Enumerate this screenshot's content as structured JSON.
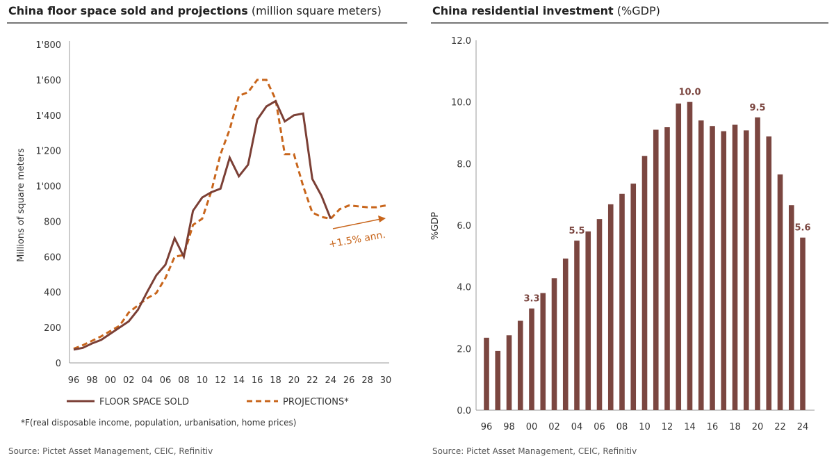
{
  "chart_data": [
    {
      "type": "line",
      "title": "China floor space sold and projections",
      "subtitle": "(million square meters)",
      "ylabel": "Millions  of square meters",
      "ylim": [
        0,
        1800
      ],
      "yticks": [
        "0",
        "200",
        "400",
        "600",
        "800",
        "1'000",
        "1'200",
        "1'400",
        "1'600",
        "1'800"
      ],
      "xticks": [
        "96",
        "98",
        "00",
        "02",
        "04",
        "06",
        "08",
        "10",
        "12",
        "14",
        "16",
        "18",
        "20",
        "22",
        "24",
        "26",
        "28",
        "30"
      ],
      "x_start_year": 1996,
      "series": [
        {
          "name": "FLOOR SPACE SOLD",
          "color": "#7b3f35",
          "values": [
            75,
            85,
            110,
            130,
            165,
            200,
            235,
            300,
            400,
            495,
            555,
            705,
            600,
            860,
            935,
            965,
            985,
            1160,
            1055,
            1120,
            1375,
            1450,
            1480,
            1365,
            1400,
            1410,
            1040,
            945,
            815
          ]
        },
        {
          "name": "PROJECTIONS*",
          "color": "#c8651b",
          "values": [
            80,
            100,
            125,
            150,
            180,
            210,
            285,
            325,
            365,
            395,
            480,
            600,
            610,
            780,
            815,
            970,
            1180,
            1320,
            1510,
            1530,
            1600,
            1600,
            1490,
            1180,
            1180,
            1000,
            850,
            825,
            815,
            870,
            890,
            885,
            880,
            880,
            890
          ]
        }
      ],
      "annotation": "+1.5% ann.",
      "footnote": "*F(real disposable income, population, urbanisation, home prices)",
      "source": "Source: Pictet Asset Management, CEIC, Refinitiv"
    },
    {
      "type": "bar",
      "title": "China residential investment",
      "subtitle": "(%GDP)",
      "ylabel": "%GDP",
      "ylim": [
        0,
        12
      ],
      "yticks": [
        "0.0",
        "2.0",
        "4.0",
        "6.0",
        "8.0",
        "10.0",
        "12.0"
      ],
      "xticks": [
        "96",
        "98",
        "00",
        "02",
        "04",
        "06",
        "08",
        "10",
        "12",
        "14",
        "16",
        "18",
        "20",
        "22",
        "24"
      ],
      "color": "#7b4640",
      "values": [
        2.35,
        1.92,
        2.43,
        2.9,
        3.3,
        3.8,
        4.28,
        4.92,
        5.5,
        5.8,
        6.2,
        6.68,
        7.02,
        7.35,
        8.25,
        9.1,
        9.18,
        9.95,
        10.0,
        9.4,
        9.22,
        9.05,
        9.26,
        9.08,
        9.5,
        8.88,
        7.65,
        6.65,
        5.6
      ],
      "data_labels": [
        {
          "index": 4,
          "text": "3.3"
        },
        {
          "index": 8,
          "text": "5.5"
        },
        {
          "index": 18,
          "text": "10.0"
        },
        {
          "index": 24,
          "text": "9.5"
        },
        {
          "index": 28,
          "text": "5.6"
        }
      ],
      "source": "Source: Pictet Asset Management, CEIC, Refinitiv"
    }
  ]
}
